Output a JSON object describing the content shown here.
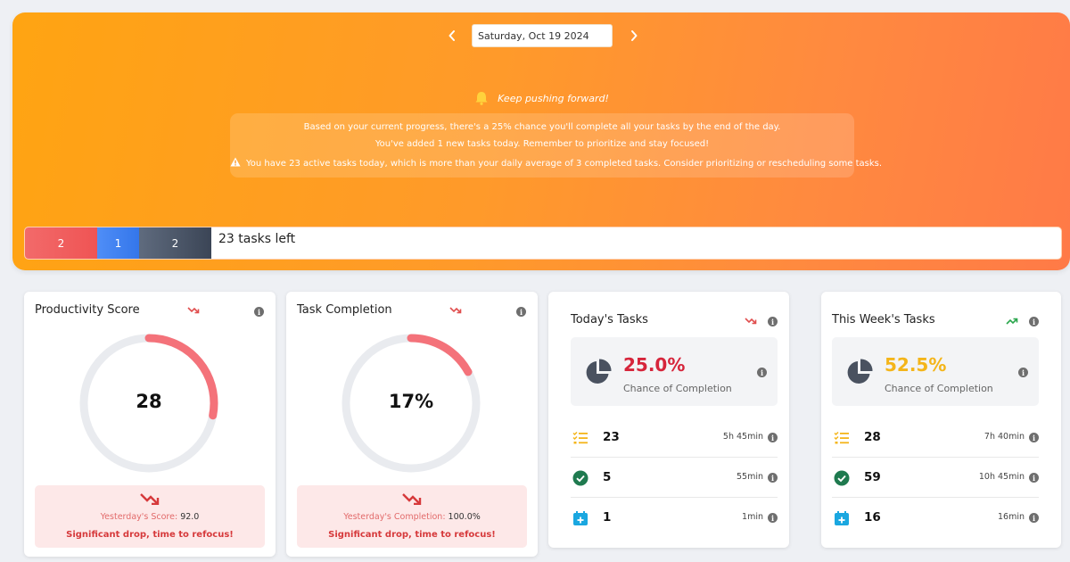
{
  "header": {
    "date": "Saturday, Oct 19 2024",
    "motivation": "Keep pushing forward!",
    "insights": [
      "Based on your current progress, there's a 25% chance you'll complete all your tasks by the end of the day.",
      "You've added 1 new tasks today. Remember to prioritize and stay focused!",
      "You have 23 active tasks today, which is more than your daily average of 3 completed tasks. Consider prioritizing or rescheduling some tasks."
    ],
    "progress": {
      "segments": [
        {
          "label": "2",
          "color": "#ef5454"
        },
        {
          "label": "1",
          "color": "#3476ea"
        },
        {
          "label": "2",
          "color": "#3b4556"
        }
      ],
      "remaining_text": "23 tasks left"
    }
  },
  "productivity": {
    "title": "Productivity Score",
    "value": "28",
    "fraction": 0.28,
    "trend": "down",
    "prev_label": "Yesterday's Score:",
    "prev_value": "92.0",
    "message": "Significant drop, time to refocus!"
  },
  "completion": {
    "title": "Task Completion",
    "value": "17%",
    "fraction": 0.17,
    "trend": "down",
    "prev_label": "Yesterday's Completion:",
    "prev_value": "100.0%",
    "message": "Significant drop, time to refocus!"
  },
  "today": {
    "title": "Today's Tasks",
    "trend": "down",
    "chance": "25.0%",
    "chance_color": "#d6253b",
    "chance_label": "Chance of Completion",
    "stats": [
      {
        "icon": "task-list-icon",
        "value": "23",
        "time": "5h 45min"
      },
      {
        "icon": "check-circle-icon",
        "value": "5",
        "time": "55min"
      },
      {
        "icon": "calendar-plus-icon",
        "value": "1",
        "time": "1min"
      }
    ]
  },
  "week": {
    "title": "This Week's Tasks",
    "trend": "up",
    "chance": "52.5%",
    "chance_color": "#f4b51a",
    "chance_label": "Chance of Completion",
    "stats": [
      {
        "icon": "task-list-icon",
        "value": "28",
        "time": "7h 40min"
      },
      {
        "icon": "check-circle-icon",
        "value": "59",
        "time": "10h 45min"
      },
      {
        "icon": "calendar-plus-icon",
        "value": "16",
        "time": "16min"
      }
    ]
  },
  "colors": {
    "hero_start": "#ffa412",
    "hero_end": "#ff7a47",
    "gauge_track": "#e9ebef",
    "gauge_fill": "#f4727a",
    "trend_down": "#e04e4e",
    "trend_up": "#2aa64c",
    "list_icon": "#f4b51a",
    "check_icon": "#1f7a4f",
    "calendar_icon": "#1aa7e0"
  }
}
